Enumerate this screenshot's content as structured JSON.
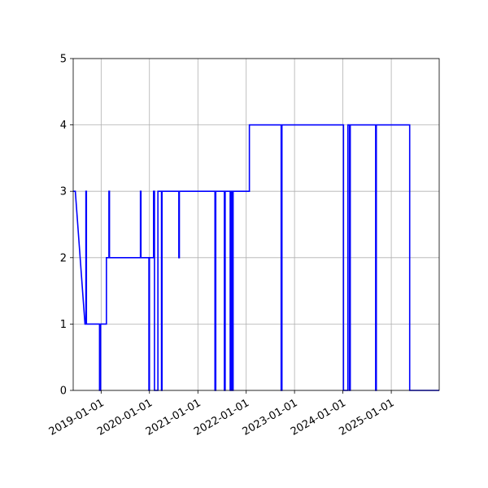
{
  "chart_data": {
    "type": "line",
    "title": "",
    "xlabel": "",
    "ylabel": "",
    "x_axis_type": "date",
    "xlim": [
      "2018-06-04",
      "2025-12-29"
    ],
    "ylim": [
      0,
      5
    ],
    "grid": true,
    "legend": "none",
    "x_ticks": [
      "2019-01-01",
      "2020-01-01",
      "2021-01-01",
      "2022-01-01",
      "2023-01-01",
      "2024-01-01",
      "2025-01-01"
    ],
    "y_ticks": [
      "0",
      "1",
      "2",
      "3",
      "4",
      "5"
    ],
    "series": [
      {
        "color": "#0000ff",
        "x": [
          "2018-06-04",
          "2018-06-20",
          "2018-09-01",
          "2018-09-08",
          "2018-09-08",
          "2018-09-12",
          "2018-09-12",
          "2018-12-20",
          "2018-12-20",
          "2018-12-28",
          "2018-12-28",
          "2019-02-10",
          "2019-02-10",
          "2019-03-01",
          "2019-03-01",
          "2019-03-05",
          "2019-03-05",
          "2019-10-25",
          "2019-10-25",
          "2019-10-29",
          "2019-10-29",
          "2019-12-28",
          "2019-12-28",
          "2020-01-01",
          "2020-01-01",
          "2020-02-01",
          "2020-02-01",
          "2020-02-08",
          "2020-02-08",
          "2020-03-05",
          "2020-03-05",
          "2020-04-01",
          "2020-04-01",
          "2020-04-05",
          "2020-04-05",
          "2020-08-10",
          "2020-08-10",
          "2020-08-14",
          "2020-08-14",
          "2021-05-10",
          "2021-05-10",
          "2021-05-16",
          "2021-05-16",
          "2021-07-20",
          "2021-07-20",
          "2021-07-26",
          "2021-07-26",
          "2021-09-02",
          "2021-09-02",
          "2021-09-08",
          "2021-09-08",
          "2021-09-18",
          "2021-09-18",
          "2021-09-24",
          "2021-09-24",
          "2022-01-25",
          "2022-01-25",
          "2022-09-22",
          "2022-09-22",
          "2022-09-28",
          "2022-09-28",
          "2024-01-06",
          "2024-01-06",
          "2024-02-08",
          "2024-02-08",
          "2024-02-20",
          "2024-02-20",
          "2024-02-26",
          "2024-02-26",
          "2024-09-05",
          "2024-09-05",
          "2024-09-10",
          "2024-09-10",
          "2025-05-20",
          "2025-05-20",
          "2025-12-29"
        ],
        "y": [
          3,
          3,
          1,
          1,
          3,
          3,
          1,
          1,
          0,
          0,
          1,
          1,
          2,
          2,
          3,
          3,
          2,
          2,
          3,
          3,
          2,
          2,
          0,
          0,
          2,
          2,
          3,
          3,
          0,
          0,
          3,
          3,
          0,
          0,
          3,
          3,
          2,
          2,
          3,
          3,
          0,
          0,
          3,
          3,
          0,
          0,
          3,
          3,
          0,
          0,
          3,
          3,
          0,
          0,
          3,
          3,
          4,
          4,
          0,
          0,
          4,
          4,
          0,
          0,
          4,
          4,
          0,
          0,
          4,
          4,
          0,
          0,
          4,
          4,
          0,
          0
        ]
      }
    ]
  }
}
